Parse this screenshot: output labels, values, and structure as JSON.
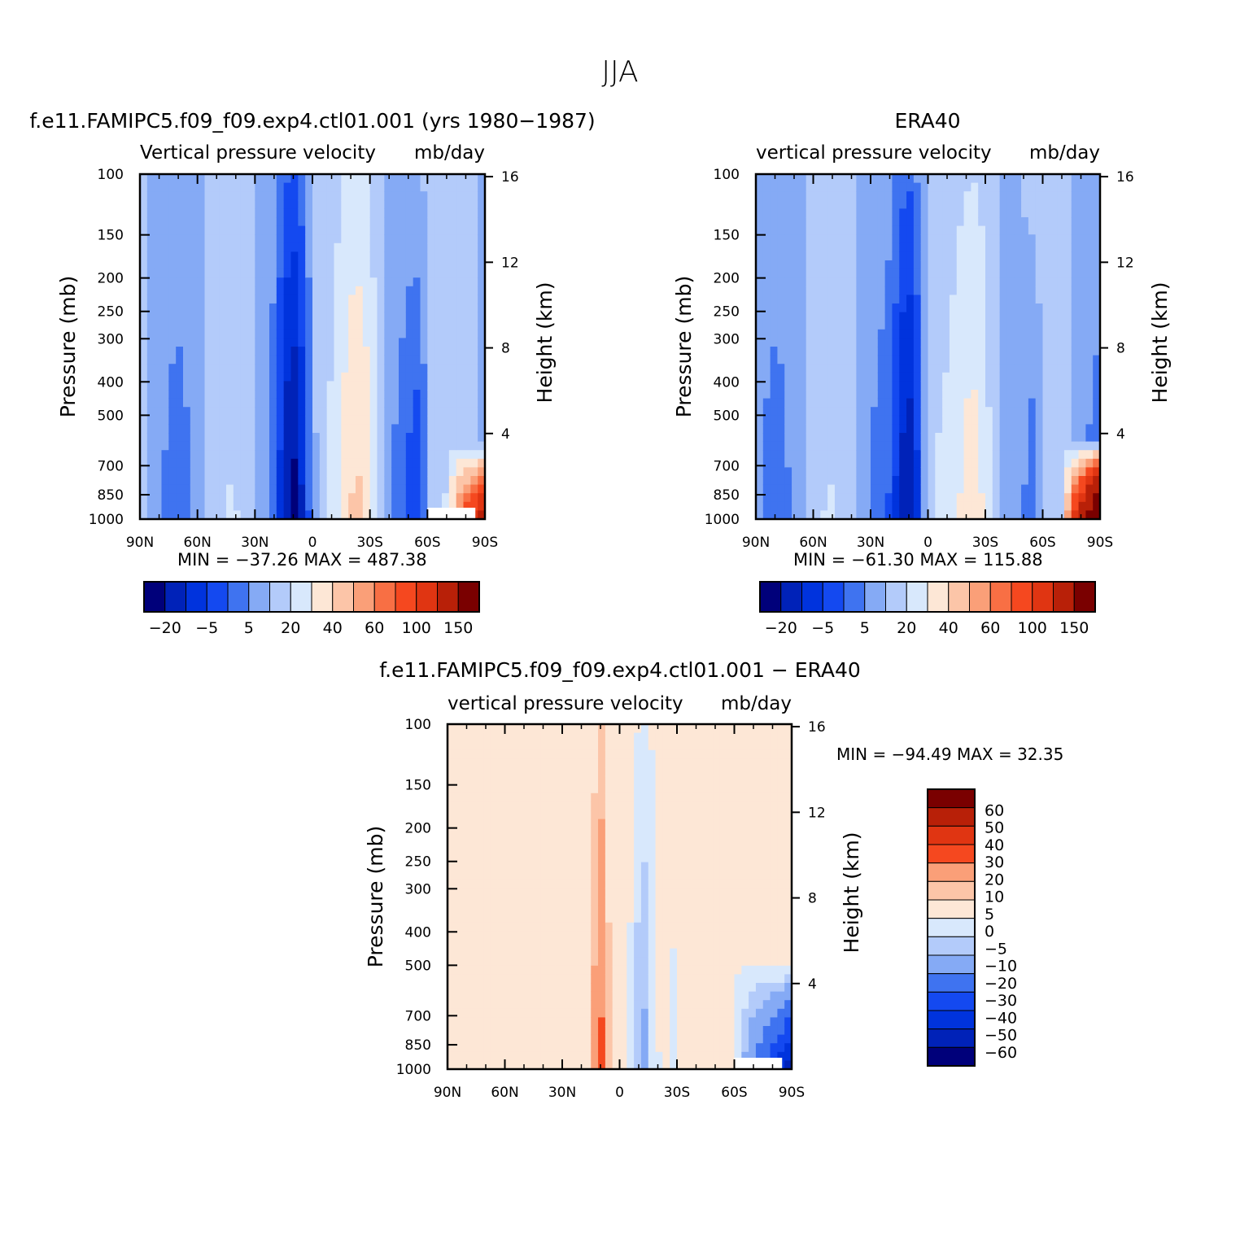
{
  "figure": {
    "title": "JJA",
    "min_label": "MIN =",
    "max_label": "MAX ="
  },
  "axes": {
    "pressure_ticks": [
      "100",
      "150",
      "200",
      "250",
      "300",
      "400",
      "500",
      "700",
      "850",
      "1000"
    ],
    "height_ticks": [
      "16",
      "12",
      "8",
      "4"
    ],
    "lat_ticks": [
      "90N",
      "60N",
      "30N",
      "0",
      "30S",
      "60S",
      "90S"
    ],
    "ylabel": "Pressure (mb)",
    "y2label": "Height (km)"
  },
  "colorbar_abs": {
    "labels": [
      "−20",
      "−5",
      "5",
      "20",
      "40",
      "60",
      "100",
      "150"
    ],
    "colors": [
      "#00007a",
      "#0022b8",
      "#0033dd",
      "#1449f0",
      "#3f73f0",
      "#85aaf5",
      "#b3cbfa",
      "#d8e8fc",
      "#fde7d6",
      "#fcc5a8",
      "#fa9f78",
      "#f86f44",
      "#f5481f",
      "#e03512",
      "#b82008",
      "#7a0000"
    ]
  },
  "colorbar_diff": {
    "labels": [
      "60",
      "50",
      "40",
      "30",
      "20",
      "10",
      "5",
      "0",
      "−5",
      "−10",
      "−20",
      "−30",
      "−40",
      "−50",
      "−60"
    ],
    "colors": [
      "#7a0000",
      "#b82008",
      "#e03512",
      "#f5481f",
      "#fa9f78",
      "#fcc5a8",
      "#fde7d6",
      "#d8e8fc",
      "#b3cbfa",
      "#85aaf5",
      "#3f73f0",
      "#1449f0",
      "#0033dd",
      "#0022b8",
      "#00007a"
    ]
  },
  "chart_data": [
    {
      "type": "heatmap",
      "title": "f.e11.FAMIPC5.f09_f09.exp4.ctl01.001 (yrs 1980−1987)",
      "subtitle": "Vertical pressure velocity",
      "units": "mb/day",
      "xlabel": "",
      "ylabel": "Pressure (mb)",
      "y2label": "Height (km)",
      "y_scale": "log",
      "ylim": [
        1000,
        100
      ],
      "xlim": [
        "90N",
        "90S"
      ],
      "levels": [
        -20,
        -5,
        5,
        20,
        40,
        60,
        100,
        150
      ],
      "min": "−37.26",
      "max": "487.38"
    },
    {
      "type": "heatmap",
      "title": "ERA40",
      "subtitle": "vertical pressure velocity",
      "units": "mb/day",
      "xlabel": "",
      "ylabel": "Pressure (mb)",
      "y2label": "Height (km)",
      "y_scale": "log",
      "ylim": [
        1000,
        100
      ],
      "xlim": [
        "90N",
        "90S"
      ],
      "levels": [
        -20,
        -5,
        5,
        20,
        40,
        60,
        100,
        150
      ],
      "min": "−61.30",
      "max": "115.88"
    },
    {
      "type": "heatmap",
      "title": "f.e11.FAMIPC5.f09_f09.exp4.ctl01.001 − ERA40",
      "subtitle": "vertical pressure velocity",
      "units": "mb/day",
      "xlabel": "",
      "ylabel": "Pressure (mb)",
      "y2label": "Height (km)",
      "y_scale": "log",
      "ylim": [
        1000,
        100
      ],
      "xlim": [
        "90N",
        "90S"
      ],
      "levels": [
        -60,
        -50,
        -40,
        -30,
        -20,
        -10,
        -5,
        0,
        5,
        10,
        20,
        30,
        40,
        50,
        60
      ],
      "min": "−94.49",
      "max": "32.35"
    }
  ]
}
